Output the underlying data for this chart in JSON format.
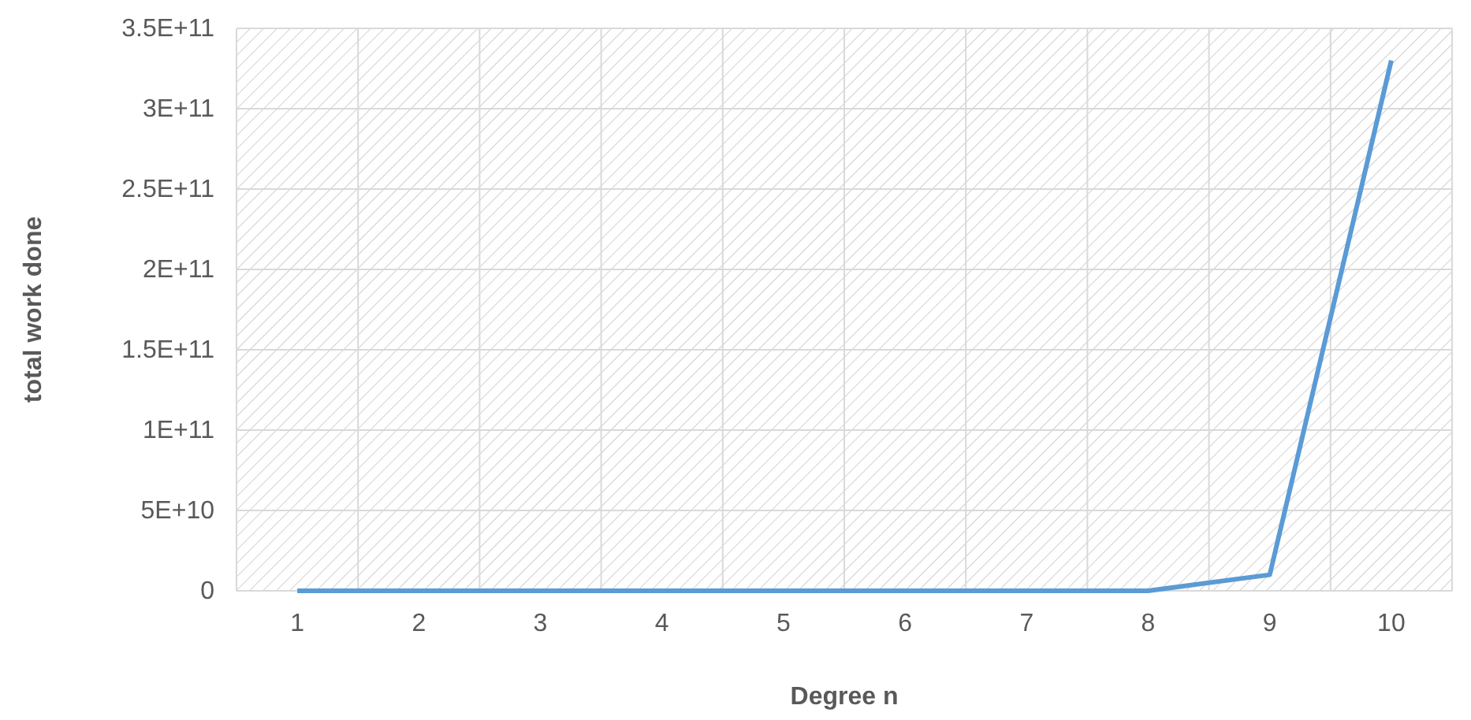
{
  "chart_data": {
    "type": "line",
    "xlabel": "Degree n",
    "ylabel": "total work done",
    "categories": [
      "1",
      "2",
      "3",
      "4",
      "5",
      "6",
      "7",
      "8",
      "9",
      "10"
    ],
    "series": [
      {
        "color": "#5b9bd5",
        "values": [
          0,
          0,
          0,
          0,
          0,
          0,
          0,
          0,
          10000000000.0,
          330000000000.0
        ]
      }
    ],
    "ylim": [
      0,
      350000000000.0
    ],
    "yticks": [
      0,
      {
        "value": 50000000000.0,
        "label": "5E+10"
      },
      {
        "value": 100000000000.0,
        "label": "1E+11"
      },
      {
        "value": 150000000000.0,
        "label": "1.5E+11"
      },
      {
        "value": 200000000000.0,
        "label": "2E+11"
      },
      {
        "value": 250000000000.0,
        "label": "2.5E+11"
      },
      {
        "value": 300000000000.0,
        "label": "3E+11"
      },
      {
        "value": 350000000000.0,
        "label": "3.5E+11"
      }
    ],
    "grid": true,
    "marker": "none",
    "line_style": "solid"
  }
}
